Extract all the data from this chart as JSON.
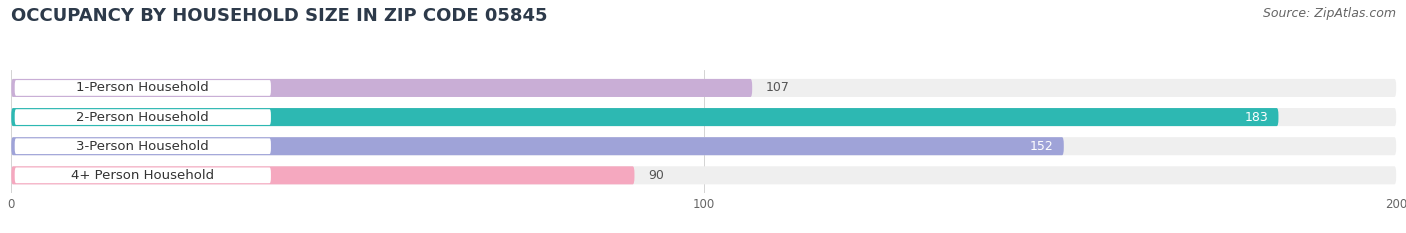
{
  "title": "OCCUPANCY BY HOUSEHOLD SIZE IN ZIP CODE 05845",
  "source": "Source: ZipAtlas.com",
  "categories": [
    "1-Person Household",
    "2-Person Household",
    "3-Person Household",
    "4+ Person Household"
  ],
  "values": [
    107,
    183,
    152,
    90
  ],
  "bar_colors": [
    "#c9aed6",
    "#2db8b2",
    "#9fa3d8",
    "#f5a8bf"
  ],
  "bar_bg_color": "#efefef",
  "xlim": [
    0,
    200
  ],
  "xticks": [
    0,
    100,
    200
  ],
  "title_fontsize": 13,
  "source_fontsize": 9,
  "label_fontsize": 9.5,
  "value_fontsize": 9,
  "fig_width": 14.06,
  "fig_height": 2.33,
  "dpi": 100
}
